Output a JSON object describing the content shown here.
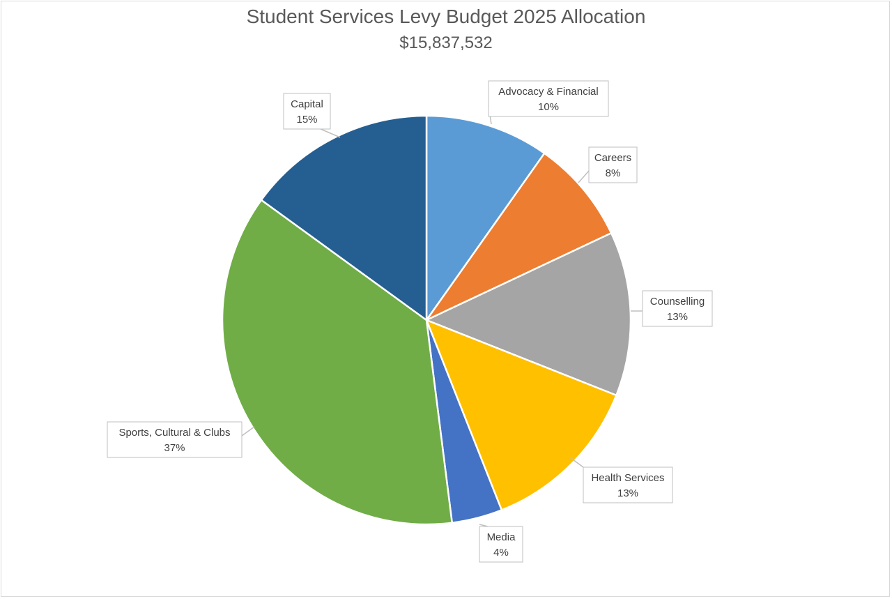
{
  "chart_data": {
    "type": "pie",
    "title": "Student Services Levy Budget 2025 Allocation",
    "subtitle": "$15,837,532",
    "slices": [
      {
        "label": "Advocacy & Financial",
        "percent_label": "10%",
        "value": 9.8,
        "color": "#5b9bd5"
      },
      {
        "label": "Careers",
        "percent_label": "8%",
        "value": 8.2,
        "color": "#ed7d31"
      },
      {
        "label": "Counselling",
        "percent_label": "13%",
        "value": 13.0,
        "color": "#a5a5a5"
      },
      {
        "label": "Health Services",
        "percent_label": "13%",
        "value": 13.0,
        "color": "#ffc000"
      },
      {
        "label": "Media",
        "percent_label": "4%",
        "value": 4.0,
        "color": "#4472c4"
      },
      {
        "label": "Sports, Cultural & Clubs",
        "percent_label": "37%",
        "value": 37.0,
        "color": "#70ad47"
      },
      {
        "label": "Capital",
        "percent_label": "15%",
        "value": 15.0,
        "color": "#255e91"
      }
    ]
  }
}
